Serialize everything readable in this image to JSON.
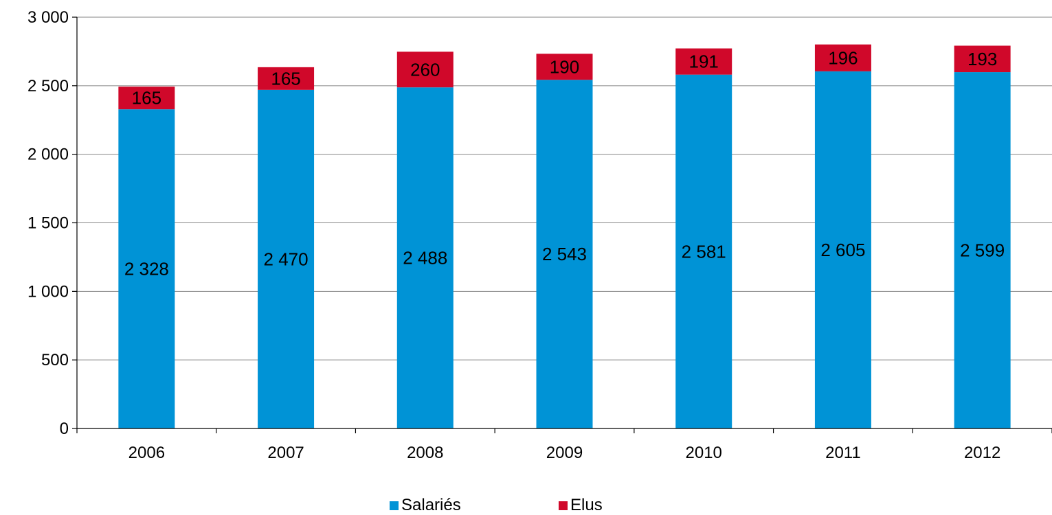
{
  "chart_data": {
    "type": "bar",
    "stacked": true,
    "categories": [
      "2006",
      "2007",
      "2008",
      "2009",
      "2010",
      "2011",
      "2012"
    ],
    "series": [
      {
        "name": "Salariés",
        "color": "#0093D6",
        "values": [
          2328,
          2470,
          2488,
          2543,
          2581,
          2605,
          2599
        ],
        "labels": [
          "2 328",
          "2 470",
          "2 488",
          "2 543",
          "2 581",
          "2 605",
          "2 599"
        ]
      },
      {
        "name": "Elus",
        "color": "#D0082A",
        "values": [
          165,
          165,
          260,
          190,
          191,
          196,
          193
        ],
        "labels": [
          "165",
          "165",
          "260",
          "190",
          "191",
          "196",
          "193"
        ]
      }
    ],
    "ylim": [
      0,
      3000
    ],
    "y_ticks": [
      0,
      500,
      1000,
      1500,
      2000,
      2500,
      3000
    ],
    "y_tick_labels": [
      "0",
      "500",
      "1 000",
      "1 500",
      "2 000",
      "2 500",
      "3 000"
    ],
    "grid": true,
    "legend_position": "bottom"
  }
}
